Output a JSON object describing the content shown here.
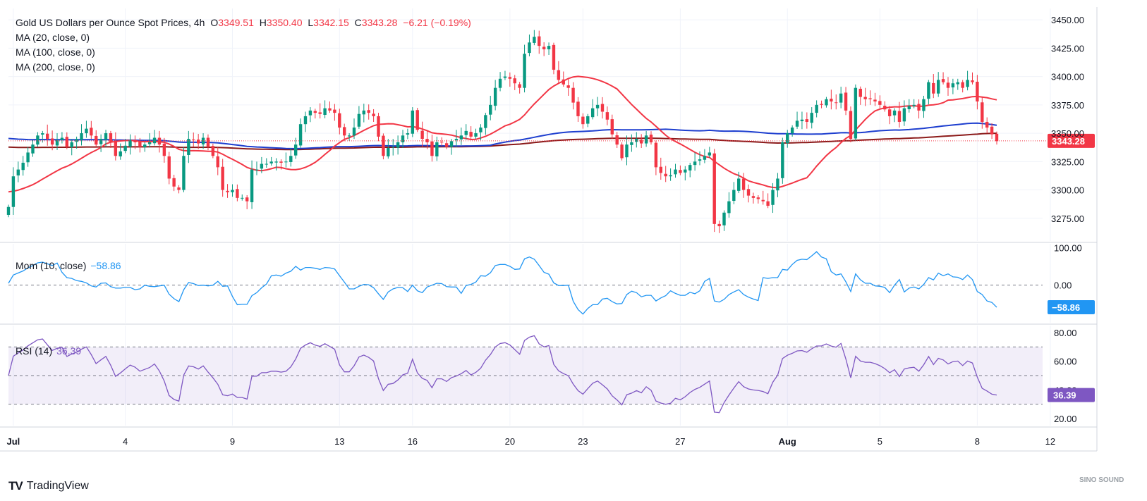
{
  "legend": {
    "title": "Gold US Dollars per Ounce Spot Prices, 4h",
    "open_label": "O",
    "open": "3349.51",
    "high_label": "H",
    "high": "3350.40",
    "low_label": "L",
    "low": "3342.15",
    "close_label": "C",
    "close": "3343.28",
    "change": "−6.21 (−0.19%)",
    "ma20": "MA (20, close, 0)",
    "ma100": "MA (100, close, 0)",
    "ma200": "MA (200, close, 0)",
    "mom": "Mom (10, close)",
    "mom_value": "−58.86",
    "rsi": "RSI (14)",
    "rsi_value": "36.39"
  },
  "branding": {
    "logo": "TV",
    "name": "TradingView",
    "watermark": "SINO SOUND"
  },
  "colors": {
    "up": "#089981",
    "down": "#f23645",
    "ma20": "#f23645",
    "ma100": "#1e3fcf",
    "ma200": "#8b1a1a",
    "mom": "#2196f3",
    "rsi": "#7e57c2",
    "grid": "#f0f3fa"
  },
  "chart_data": [
    {
      "type": "candlestick",
      "title": "Gold US Dollars per Ounce Spot Prices, 4h",
      "ylim": [
        3255,
        3460
      ],
      "y_ticks": [
        "3450.00",
        "3425.00",
        "3400.00",
        "3375.00",
        "3350.00",
        "3325.00",
        "3300.00",
        "3275.00"
      ],
      "x_ticks": [
        "Jul",
        "4",
        "9",
        "13",
        "16",
        "20",
        "23",
        "27",
        "Aug",
        "5",
        "8",
        "12"
      ],
      "last_price": "3343.28",
      "legend_entries": [
        "MA (20, close, 0)",
        "MA (100, close, 0)",
        "MA (200, close, 0)"
      ],
      "closes": [
        3285,
        3312,
        3318,
        3324,
        3333,
        3340,
        3348,
        3350,
        3345,
        3340,
        3344,
        3346,
        3338,
        3342,
        3345,
        3350,
        3354,
        3348,
        3340,
        3345,
        3350,
        3342,
        3330,
        3334,
        3339,
        3344,
        3342,
        3338,
        3340,
        3342,
        3346,
        3340,
        3330,
        3310,
        3303,
        3300,
        3330,
        3345,
        3344,
        3341,
        3346,
        3338,
        3330,
        3320,
        3300,
        3298,
        3300,
        3293,
        3293,
        3290,
        3318,
        3318,
        3323,
        3323,
        3325,
        3325,
        3324,
        3325,
        3330,
        3340,
        3358,
        3365,
        3370,
        3368,
        3367,
        3372,
        3370,
        3368,
        3355,
        3348,
        3348,
        3355,
        3367,
        3370,
        3368,
        3365,
        3347,
        3330,
        3337,
        3338,
        3342,
        3348,
        3350,
        3370,
        3353,
        3345,
        3342,
        3330,
        3342,
        3342,
        3338,
        3343,
        3345,
        3348,
        3352,
        3347,
        3350,
        3355,
        3366,
        3375,
        3390,
        3398,
        3400,
        3398,
        3394,
        3390,
        3420,
        3430,
        3435,
        3427,
        3424,
        3427,
        3406,
        3397,
        3393,
        3390,
        3377,
        3365,
        3358,
        3365,
        3372,
        3375,
        3369,
        3362,
        3349,
        3340,
        3328,
        3340,
        3342,
        3345,
        3341,
        3348,
        3342,
        3320,
        3315,
        3312,
        3313,
        3318,
        3315,
        3318,
        3322,
        3325,
        3327,
        3330,
        3333,
        3270,
        3268,
        3280,
        3290,
        3300,
        3310,
        3300,
        3295,
        3293,
        3292,
        3290,
        3286,
        3300,
        3310,
        3342,
        3350,
        3355,
        3361,
        3362,
        3360,
        3368,
        3375,
        3375,
        3380,
        3378,
        3377,
        3385,
        3370,
        3345,
        3390,
        3382,
        3380,
        3380,
        3378,
        3375,
        3371,
        3365,
        3370,
        3360,
        3372,
        3374,
        3375,
        3370,
        3380,
        3395,
        3385,
        3397,
        3395,
        3390,
        3394,
        3395,
        3390,
        3397,
        3395,
        3378,
        3360,
        3355,
        3349,
        3343
      ]
    },
    {
      "type": "line",
      "title": "Mom (10, close)",
      "ylim": [
        -100,
        110
      ],
      "y_ticks": [
        "100.00",
        "0.00"
      ],
      "last_value": "−58.86"
    },
    {
      "type": "line",
      "title": "RSI (14)",
      "ylim": [
        15,
        85
      ],
      "y_ticks": [
        "80.00",
        "60.00",
        "40.00",
        "20.00"
      ],
      "bands": [
        70,
        50,
        30
      ],
      "last_value": "36.39"
    }
  ]
}
